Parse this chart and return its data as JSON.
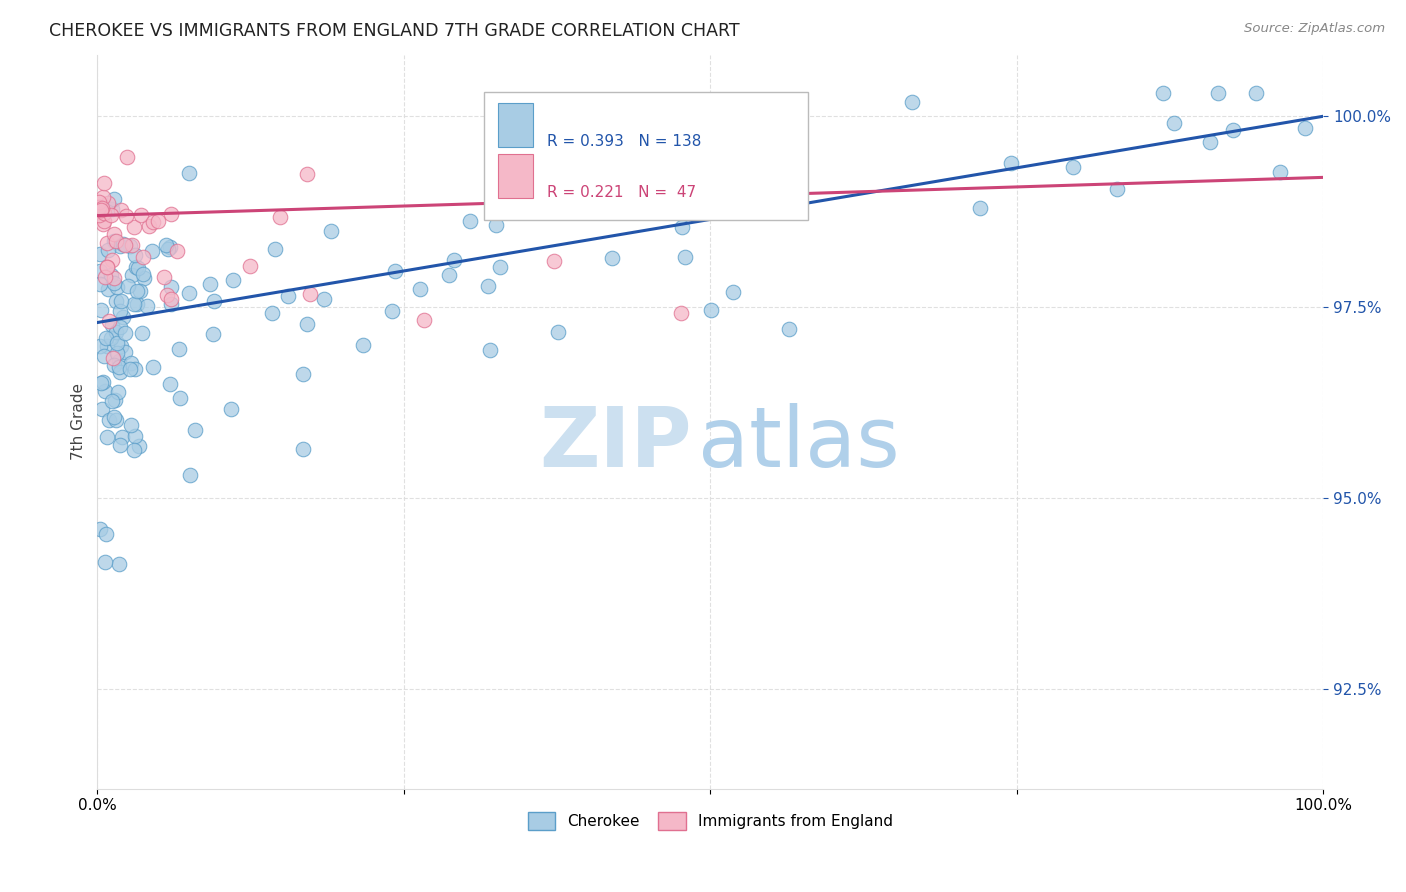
{
  "title": "CHEROKEE VS IMMIGRANTS FROM ENGLAND 7TH GRADE CORRELATION CHART",
  "source": "Source: ZipAtlas.com",
  "ylabel": "7th Grade",
  "yticks": [
    92.5,
    95.0,
    97.5,
    100.0
  ],
  "xlim": [
    0.0,
    100.0
  ],
  "ylim": [
    91.2,
    100.8
  ],
  "legend_r1": "R = 0.393",
  "legend_n1": "N = 138",
  "legend_r2": "R = 0.221",
  "legend_n2": "N =  47",
  "blue_fill": "#a8cce4",
  "blue_edge": "#5b9ec9",
  "blue_line": "#2255aa",
  "pink_fill": "#f5b8c8",
  "pink_edge": "#e07090",
  "pink_line": "#cc4477",
  "watermark_zip": "#cce0f0",
  "watermark_atlas": "#b0d0ea",
  "grid_color": "#dddddd",
  "title_color": "#222222",
  "ytick_color": "#2255aa",
  "source_color": "#888888"
}
